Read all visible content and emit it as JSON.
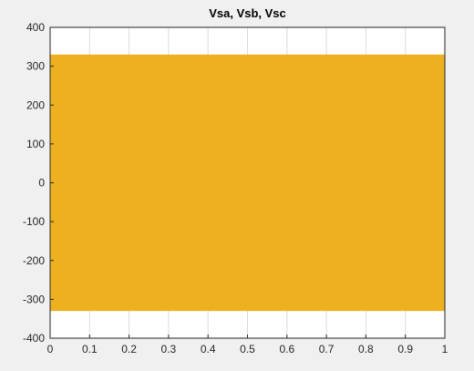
{
  "chart_data": {
    "type": "line",
    "title": "Vsa, Vsb, Vsc",
    "xlabel": "",
    "ylabel": "",
    "xlim": [
      0,
      1
    ],
    "ylim": [
      -400,
      400
    ],
    "x_ticks": [
      "0",
      "0.1",
      "0.2",
      "0.3",
      "0.4",
      "0.5",
      "0.6",
      "0.7",
      "0.8",
      "0.9",
      "1"
    ],
    "y_ticks": [
      "400",
      "300",
      "200",
      "100",
      "0",
      "-100",
      "-200",
      "-300",
      "-400"
    ],
    "grid": true,
    "legend": "none",
    "series": [
      {
        "color": "#edb120",
        "description": "dense sinusoidal envelope",
        "x_range": [
          0,
          1
        ],
        "amplitude_max": 330,
        "amplitude_min": -330
      }
    ]
  },
  "colors": {
    "figure_background": "#f0f0f0",
    "axes_background": "#ffffff",
    "series": "#edb120"
  }
}
